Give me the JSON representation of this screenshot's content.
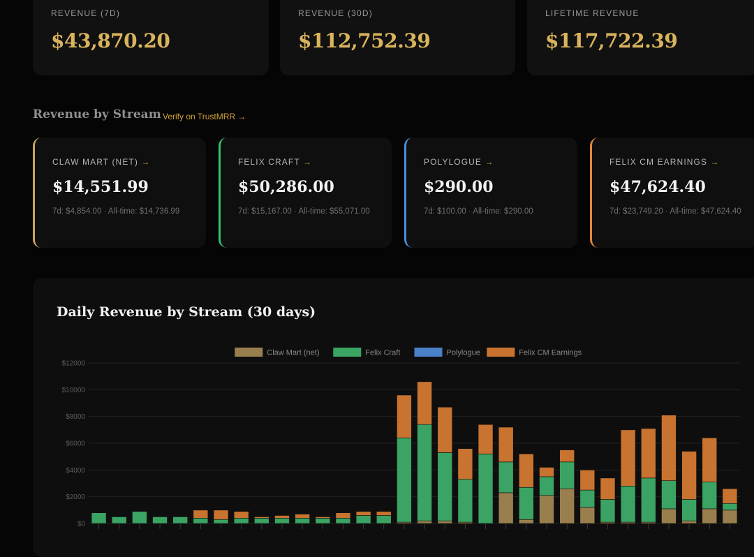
{
  "kpis": [
    {
      "label": "REVENUE (7D)",
      "value": "$43,870.20"
    },
    {
      "label": "REVENUE (30D)",
      "value": "$112,752.39"
    },
    {
      "label": "LIFETIME REVENUE",
      "value": "$117,722.39"
    }
  ],
  "streams_section": {
    "title": "Revenue by Stream",
    "verify_link": "Verify on TrustMRR →"
  },
  "streams": [
    {
      "label": "CLAW MART (NET)",
      "arrow": "→",
      "value": "$14,551.99",
      "sub": "7d: $4,854.00 · All-time: $14,736.99",
      "color": "#c9a55a"
    },
    {
      "label": "FELIX CRAFT",
      "arrow": "→",
      "value": "$50,286.00",
      "sub": "7d: $15,167.00 · All-time: $55,071.00",
      "color": "#35c26c"
    },
    {
      "label": "POLYLOGUE",
      "arrow": "→",
      "value": "$290.00",
      "sub": "7d: $100.00 · All-time: $290.00",
      "color": "#4a8fe0"
    },
    {
      "label": "FELIX CM EARNINGS",
      "arrow": "→",
      "value": "$47,624.40",
      "sub": "7d: $23,749.20 · All-time: $47,624.40",
      "color": "#e0883a"
    }
  ],
  "chart_data": {
    "type": "bar",
    "stacked": true,
    "title": "Daily Revenue by Stream (30 days)",
    "ylim": [
      0,
      12000
    ],
    "yticks": [
      "$0",
      "$2000",
      "$4000",
      "$6000",
      "$8000",
      "$10000",
      "$12000"
    ],
    "legend_position": "top-center",
    "colors": [
      "#9a7f4e",
      "#3ba363",
      "#4a80c8",
      "#c8732f"
    ],
    "series": [
      {
        "name": "Claw Mart (net)",
        "values": [
          0,
          0,
          0,
          0,
          0,
          0,
          0,
          0,
          0,
          0,
          0,
          0,
          0,
          0,
          0,
          100,
          200,
          200,
          100,
          0,
          2300,
          300,
          2100,
          2600,
          1200,
          100,
          100,
          100,
          1100,
          200,
          1100,
          1000
        ]
      },
      {
        "name": "Felix Craft",
        "values": [
          800,
          500,
          900,
          500,
          500,
          400,
          300,
          400,
          400,
          400,
          400,
          400,
          400,
          600,
          600,
          6300,
          7200,
          5100,
          3200,
          5200,
          2300,
          2400,
          1400,
          2000,
          1300,
          1700,
          2700,
          3300,
          2100,
          1600,
          2000,
          500
        ]
      },
      {
        "name": "Polylogue",
        "values": [
          0,
          0,
          0,
          0,
          0,
          0,
          0,
          0,
          0,
          0,
          0,
          0,
          0,
          0,
          0,
          0,
          0,
          0,
          0,
          0,
          0,
          0,
          0,
          0,
          0,
          0,
          0,
          0,
          0,
          0,
          0,
          0
        ]
      },
      {
        "name": "Felix CM Earnings",
        "values": [
          0,
          0,
          0,
          0,
          0,
          600,
          700,
          500,
          100,
          200,
          300,
          100,
          400,
          300,
          300,
          3200,
          3200,
          3400,
          2300,
          2200,
          2600,
          2500,
          700,
          900,
          1500,
          1600,
          4200,
          3700,
          4900,
          3600,
          3300,
          1100
        ]
      }
    ]
  }
}
